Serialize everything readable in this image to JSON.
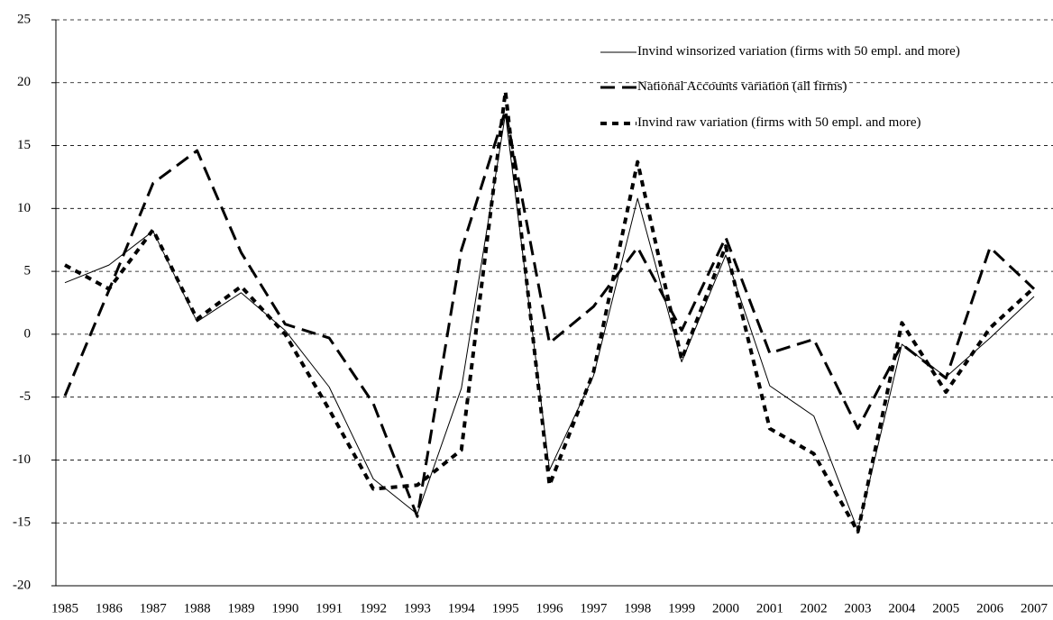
{
  "chart_data": {
    "type": "line",
    "categories": [
      "1985",
      "1986",
      "1987",
      "1988",
      "1989",
      "1990",
      "1991",
      "1992",
      "1993",
      "1994",
      "1995",
      "1996",
      "1997",
      "1998",
      "1999",
      "2000",
      "2001",
      "2002",
      "2003",
      "2004",
      "2005",
      "2006",
      "2007"
    ],
    "series": [
      {
        "name": "Invind winsorized variation (firms  with 50 empl. and more)",
        "color": "#000000",
        "dash": "solid",
        "values": [
          4.1,
          5.5,
          8.2,
          1.0,
          3.3,
          0.3,
          -4.2,
          -11.5,
          -14.3,
          -4.3,
          17.5,
          -10.8,
          -3.3,
          10.8,
          -2.2,
          6.3,
          -4.1,
          -6.5,
          -15.6,
          -0.8,
          -3.4,
          -0.3,
          3.0
        ]
      },
      {
        "name": "National Accounts variation (all firms)",
        "color": "#000000",
        "dash": "long",
        "values": [
          -4.9,
          3.5,
          12.0,
          14.6,
          6.5,
          0.8,
          -0.3,
          -5.5,
          -14.5,
          6.7,
          17.8,
          -0.7,
          2.2,
          6.9,
          0.3,
          7.7,
          -1.5,
          -0.4,
          -7.5,
          -0.8,
          -3.5,
          6.9,
          3.6
        ]
      },
      {
        "name": "Invind raw variation (firms  with 50 empl. and more)",
        "color": "#000000",
        "dash": "short",
        "values": [
          5.5,
          3.6,
          8.3,
          1.2,
          3.8,
          0.0,
          -6.0,
          -12.3,
          -12.0,
          -9.2,
          19.3,
          -12.0,
          -3.0,
          13.7,
          -2.0,
          7.0,
          -7.5,
          -9.5,
          -15.7,
          0.9,
          -4.6,
          0.5,
          3.7
        ]
      }
    ],
    "ylim": [
      -20,
      25
    ],
    "yticks": [
      -20,
      -15,
      -10,
      -5,
      0,
      5,
      10,
      15,
      20,
      25
    ],
    "grid": true,
    "legend": "top-right"
  }
}
